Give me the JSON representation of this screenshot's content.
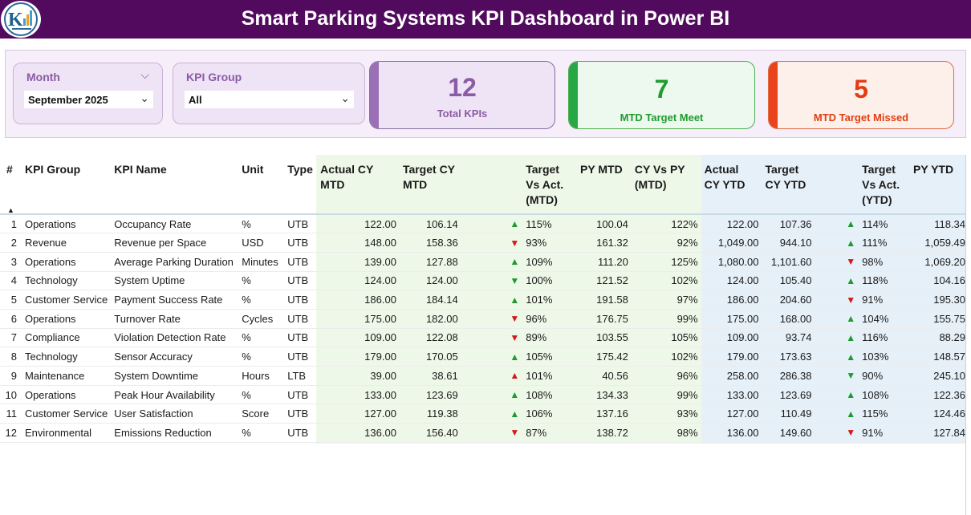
{
  "header": {
    "title": "Smart Parking Systems KPI Dashboard in Power BI"
  },
  "slicers": {
    "month": {
      "label": "Month",
      "value": "September 2025"
    },
    "kpi_group": {
      "label": "KPI Group",
      "value": "All"
    }
  },
  "cards": {
    "total": {
      "value": "12",
      "label": "Total KPIs",
      "color": "#9b6fb6"
    },
    "meet": {
      "value": "7",
      "label": "MTD Target Meet",
      "color": "#28a745"
    },
    "missed": {
      "value": "5",
      "label": "MTD Target Missed",
      "color": "#e8431a"
    }
  },
  "colors": {
    "title_bar": "#520a5e",
    "mtd_column_bg": "#eef8e8",
    "ytd_column_bg": "#e6f0f8",
    "up_arrow": "#1e9b2e",
    "down_arrow": "#d11a1a"
  },
  "table": {
    "headers": {
      "idx": "#",
      "group": "KPI Group",
      "name": "KPI Name",
      "unit": "Unit",
      "type": "Type",
      "actual_mtd": "Actual CY MTD",
      "target_mtd": "Target CY MTD",
      "tva_mtd": "Target Vs Act. (MTD)",
      "py_mtd": "PY MTD",
      "cyvspy_mtd": "CY Vs PY (MTD)",
      "actual_ytd": "Actual CY YTD",
      "target_ytd": "Target CY YTD",
      "tva_ytd": "Target Vs Act. (YTD)",
      "py_ytd": "PY YTD"
    },
    "rows": [
      {
        "idx": "1",
        "group": "Operations",
        "name": "Occupancy Rate",
        "unit": "%",
        "type": "UTB",
        "actual_mtd": "122.00",
        "target_mtd": "106.14",
        "arrow_mtd": "up",
        "tva_mtd": "115%",
        "py_mtd": "100.04",
        "cyvspy_mtd": "122%",
        "actual_ytd": "122.00",
        "target_ytd": "107.36",
        "arrow_ytd": "up",
        "tva_ytd": "114%",
        "py_ytd": "118.34"
      },
      {
        "idx": "2",
        "group": "Revenue",
        "name": "Revenue per Space",
        "unit": "USD",
        "type": "UTB",
        "actual_mtd": "148.00",
        "target_mtd": "158.36",
        "arrow_mtd": "down",
        "tva_mtd": "93%",
        "py_mtd": "161.32",
        "cyvspy_mtd": "92%",
        "actual_ytd": "1,049.00",
        "target_ytd": "944.10",
        "arrow_ytd": "up",
        "tva_ytd": "111%",
        "py_ytd": "1,059.49"
      },
      {
        "idx": "3",
        "group": "Operations",
        "name": "Average Parking Duration",
        "unit": "Minutes",
        "type": "UTB",
        "actual_mtd": "139.00",
        "target_mtd": "127.88",
        "arrow_mtd": "up",
        "tva_mtd": "109%",
        "py_mtd": "111.20",
        "cyvspy_mtd": "125%",
        "actual_ytd": "1,080.00",
        "target_ytd": "1,101.60",
        "arrow_ytd": "down",
        "tva_ytd": "98%",
        "py_ytd": "1,069.20"
      },
      {
        "idx": "4",
        "group": "Technology",
        "name": "System Uptime",
        "unit": "%",
        "type": "UTB",
        "actual_mtd": "124.00",
        "target_mtd": "124.00",
        "arrow_mtd": "down-green",
        "tva_mtd": "100%",
        "py_mtd": "121.52",
        "cyvspy_mtd": "102%",
        "actual_ytd": "124.00",
        "target_ytd": "105.40",
        "arrow_ytd": "up",
        "tva_ytd": "118%",
        "py_ytd": "104.16"
      },
      {
        "idx": "5",
        "group": "Customer Service",
        "name": "Payment Success Rate",
        "unit": "%",
        "type": "UTB",
        "actual_mtd": "186.00",
        "target_mtd": "184.14",
        "arrow_mtd": "up",
        "tva_mtd": "101%",
        "py_mtd": "191.58",
        "cyvspy_mtd": "97%",
        "actual_ytd": "186.00",
        "target_ytd": "204.60",
        "arrow_ytd": "down",
        "tva_ytd": "91%",
        "py_ytd": "195.30"
      },
      {
        "idx": "6",
        "group": "Operations",
        "name": "Turnover Rate",
        "unit": "Cycles",
        "type": "UTB",
        "actual_mtd": "175.00",
        "target_mtd": "182.00",
        "arrow_mtd": "down",
        "tva_mtd": "96%",
        "py_mtd": "176.75",
        "cyvspy_mtd": "99%",
        "actual_ytd": "175.00",
        "target_ytd": "168.00",
        "arrow_ytd": "up",
        "tva_ytd": "104%",
        "py_ytd": "155.75"
      },
      {
        "idx": "7",
        "group": "Compliance",
        "name": "Violation Detection Rate",
        "unit": "%",
        "type": "UTB",
        "actual_mtd": "109.00",
        "target_mtd": "122.08",
        "arrow_mtd": "down",
        "tva_mtd": "89%",
        "py_mtd": "103.55",
        "cyvspy_mtd": "105%",
        "actual_ytd": "109.00",
        "target_ytd": "93.74",
        "arrow_ytd": "up",
        "tva_ytd": "116%",
        "py_ytd": "88.29"
      },
      {
        "idx": "8",
        "group": "Technology",
        "name": "Sensor Accuracy",
        "unit": "%",
        "type": "UTB",
        "actual_mtd": "179.00",
        "target_mtd": "170.05",
        "arrow_mtd": "up",
        "tva_mtd": "105%",
        "py_mtd": "175.42",
        "cyvspy_mtd": "102%",
        "actual_ytd": "179.00",
        "target_ytd": "173.63",
        "arrow_ytd": "up",
        "tva_ytd": "103%",
        "py_ytd": "148.57"
      },
      {
        "idx": "9",
        "group": "Maintenance",
        "name": "System Downtime",
        "unit": "Hours",
        "type": "LTB",
        "actual_mtd": "39.00",
        "target_mtd": "38.61",
        "arrow_mtd": "up-red",
        "tva_mtd": "101%",
        "py_mtd": "40.56",
        "cyvspy_mtd": "96%",
        "actual_ytd": "258.00",
        "target_ytd": "286.38",
        "arrow_ytd": "down-green",
        "tva_ytd": "90%",
        "py_ytd": "245.10"
      },
      {
        "idx": "10",
        "group": "Operations",
        "name": "Peak Hour Availability",
        "unit": "%",
        "type": "UTB",
        "actual_mtd": "133.00",
        "target_mtd": "123.69",
        "arrow_mtd": "up",
        "tva_mtd": "108%",
        "py_mtd": "134.33",
        "cyvspy_mtd": "99%",
        "actual_ytd": "133.00",
        "target_ytd": "123.69",
        "arrow_ytd": "up",
        "tva_ytd": "108%",
        "py_ytd": "122.36"
      },
      {
        "idx": "11",
        "group": "Customer Service",
        "name": "User Satisfaction",
        "unit": "Score",
        "type": "UTB",
        "actual_mtd": "127.00",
        "target_mtd": "119.38",
        "arrow_mtd": "up",
        "tva_mtd": "106%",
        "py_mtd": "137.16",
        "cyvspy_mtd": "93%",
        "actual_ytd": "127.00",
        "target_ytd": "110.49",
        "arrow_ytd": "up",
        "tva_ytd": "115%",
        "py_ytd": "124.46"
      },
      {
        "idx": "12",
        "group": "Environmental",
        "name": "Emissions Reduction",
        "unit": "%",
        "type": "UTB",
        "actual_mtd": "136.00",
        "target_mtd": "156.40",
        "arrow_mtd": "down",
        "tva_mtd": "87%",
        "py_mtd": "138.72",
        "cyvspy_mtd": "98%",
        "actual_ytd": "136.00",
        "target_ytd": "149.60",
        "arrow_ytd": "down",
        "tva_ytd": "91%",
        "py_ytd": "127.84"
      }
    ]
  }
}
